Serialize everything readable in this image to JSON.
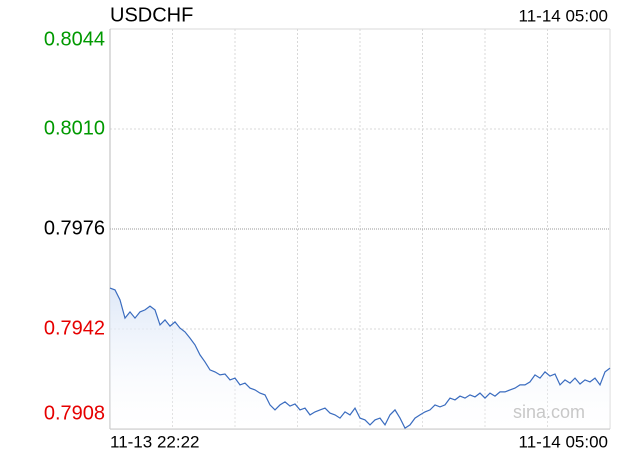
{
  "chart_data": {
    "type": "line",
    "title": "USDCHF",
    "timestamp": "11-14 05:00",
    "watermark": "sina.com",
    "xlabels": [
      "11-13 22:22",
      "11-14 05:00"
    ],
    "ylim": [
      0.7908,
      0.8044
    ],
    "yticks": [
      0.8044,
      0.801,
      0.7976,
      0.7942,
      0.7908
    ],
    "ytick_labels": [
      "0.8044",
      "0.8010",
      "0.7976",
      "0.7942",
      "0.7908"
    ],
    "up_color": "#009900",
    "down_color": "#e60000",
    "flat_color": "#000000",
    "color": "#3a6cbf",
    "grid": true,
    "values": [
      0.79559,
      0.79553,
      0.79519,
      0.79457,
      0.79478,
      0.79457,
      0.79478,
      0.79485,
      0.79498,
      0.79485,
      0.79434,
      0.79451,
      0.7943,
      0.79444,
      0.79423,
      0.7941,
      0.79389,
      0.79366,
      0.79332,
      0.79308,
      0.79281,
      0.79274,
      0.79264,
      0.79267,
      0.79247,
      0.79253,
      0.7923,
      0.79236,
      0.79219,
      0.79213,
      0.79202,
      0.79196,
      0.79162,
      0.79145,
      0.79162,
      0.79172,
      0.79158,
      0.79165,
      0.79145,
      0.79151,
      0.79128,
      0.79138,
      0.79145,
      0.79151,
      0.79134,
      0.79128,
      0.79117,
      0.79138,
      0.79128,
      0.79151,
      0.79117,
      0.79111,
      0.79094,
      0.79111,
      0.79117,
      0.79094,
      0.79128,
      0.79145,
      0.79117,
      0.79083,
      0.79094,
      0.79117,
      0.79128,
      0.79138,
      0.79145,
      0.79162,
      0.79155,
      0.79162,
      0.79185,
      0.79179,
      0.79192,
      0.79185,
      0.79196,
      0.79189,
      0.79202,
      0.79185,
      0.79202,
      0.79192,
      0.79206,
      0.79206,
      0.79213,
      0.79219,
      0.7923,
      0.7923,
      0.7924,
      0.79264,
      0.79253,
      0.79274,
      0.7926,
      0.79267,
      0.7923,
      0.79247,
      0.79236,
      0.79253,
      0.79233,
      0.79247,
      0.7924,
      0.79253,
      0.7923,
      0.79274,
      0.79287
    ]
  }
}
